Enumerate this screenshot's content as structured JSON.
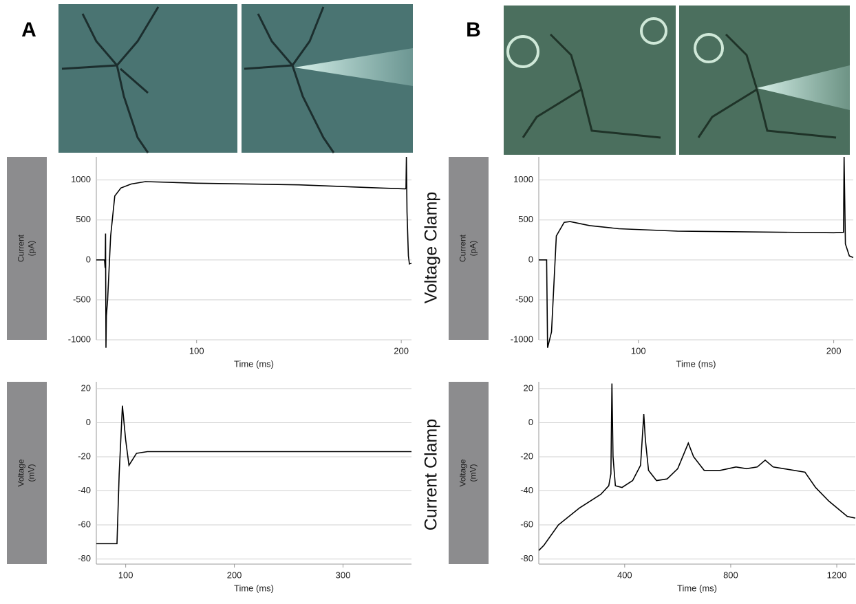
{
  "panel_labels": [
    "A",
    "B"
  ],
  "row_labels": [
    "Voltage Clamp",
    "Current Clamp"
  ],
  "chart_data": [
    {
      "type": "line",
      "ylabel": [
        "Current",
        "(pA)"
      ],
      "xlabel": "Time (ms)",
      "x": [
        51,
        55,
        55.3,
        55.5,
        55.7,
        55.9,
        56.5,
        58,
        60,
        63,
        68,
        75,
        100,
        150,
        190,
        202,
        202.3,
        202.5,
        202.8,
        203.5,
        204,
        205
      ],
      "values": [
        0,
        0,
        -100,
        330,
        -1100,
        -700,
        -500,
        300,
        800,
        900,
        950,
        980,
        960,
        940,
        900,
        890,
        900,
        1290,
        600,
        50,
        -50,
        -40
      ],
      "color": "#000000",
      "xlim": [
        51,
        205
      ],
      "ylim": [
        -1000,
        1290
      ],
      "xticks": [
        100,
        200
      ],
      "yticks": [
        -1000,
        -500,
        0,
        500,
        1000
      ],
      "grid": true
    },
    {
      "type": "line",
      "ylabel": [
        "Voltage",
        "(mV)"
      ],
      "xlabel": "Time (ms)",
      "x": [
        73,
        92,
        94,
        97,
        100,
        103,
        106,
        110,
        120,
        200,
        300,
        363
      ],
      "values": [
        -71,
        -71,
        -30,
        10,
        -10,
        -25,
        -22,
        -18,
        -17,
        -17,
        -17,
        -17
      ],
      "color": "#000000",
      "xlim": [
        73,
        363
      ],
      "ylim": [
        -83,
        24
      ],
      "xticks": [
        100,
        200,
        300
      ],
      "yticks": [
        -80,
        -60,
        -40,
        -20,
        0,
        20
      ],
      "grid": true
    },
    {
      "type": "line",
      "ylabel": [
        "Current",
        "(pA)"
      ],
      "xlabel": "Time (ms)",
      "x": [
        49,
        53,
        53.5,
        55.5,
        58,
        62,
        65,
        75,
        90,
        120,
        160,
        200,
        205,
        205.3,
        206,
        208,
        210
      ],
      "values": [
        0,
        0,
        -1100,
        -900,
        300,
        470,
        480,
        430,
        390,
        360,
        350,
        340,
        345,
        1290,
        200,
        50,
        30
      ],
      "color": "#000000",
      "xlim": [
        49,
        210
      ],
      "ylim": [
        -1000,
        1290
      ],
      "xticks": [
        100,
        200
      ],
      "yticks": [
        -1000,
        -500,
        0,
        500,
        1000
      ],
      "grid": true
    },
    {
      "type": "line",
      "ylabel": [
        "Voltage",
        "(mV)"
      ],
      "xlabel": "Time (ms)",
      "x": [
        76,
        95,
        150,
        230,
        310,
        340,
        348,
        352,
        356,
        365,
        390,
        430,
        460,
        472,
        478,
        490,
        520,
        560,
        600,
        640,
        660,
        700,
        760,
        820,
        860,
        900,
        930,
        960,
        1000,
        1080,
        1120,
        1170,
        1240,
        1270
      ],
      "values": [
        -75,
        -72,
        -60,
        -50,
        -42,
        -37,
        -30,
        23,
        -20,
        -37,
        -38,
        -34,
        -25,
        5,
        -10,
        -28,
        -34,
        -33,
        -27,
        -12,
        -20,
        -28,
        -28,
        -26,
        -27,
        -26,
        -22,
        -26,
        -27,
        -29,
        -38,
        -46,
        -55,
        -56
      ],
      "color": "#000000",
      "xlim": [
        76,
        1270
      ],
      "ylim": [
        -83,
        24
      ],
      "xticks": [
        400,
        800,
        1200
      ],
      "yticks": [
        -80,
        -60,
        -40,
        -20,
        0,
        20
      ],
      "grid": true
    }
  ]
}
